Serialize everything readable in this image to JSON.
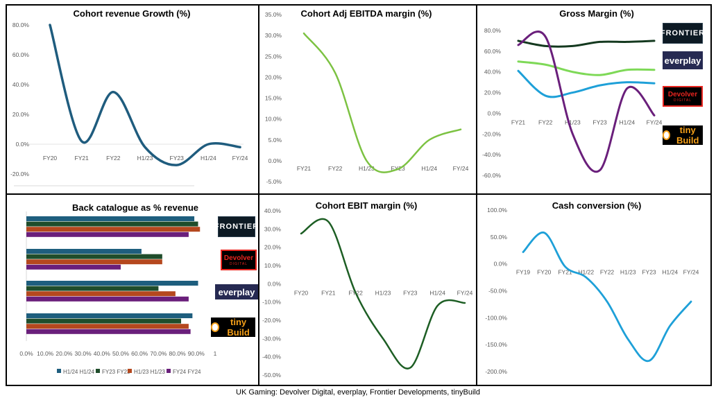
{
  "caption": "UK Gaming: Devolver Digital, everplay, Frontier Developments, tinyBuild",
  "logos": {
    "frontier": "FRONTIER",
    "everplay": "everplay",
    "devolver": "Devolver",
    "devolver_sub": "DIGITAL",
    "tinybuild": "tiny Build"
  },
  "chart_data": [
    {
      "id": "revenue",
      "type": "line",
      "title": "Cohort revenue Growth (%)",
      "categories": [
        "FY20",
        "FY21",
        "FY22",
        "H1/23",
        "FY23",
        "H1/24",
        "FY/24"
      ],
      "yticks": [
        "80.0%",
        "60.0%",
        "40.0%",
        "20.0%",
        "0.0%",
        "-20.0%"
      ],
      "ylim": [
        -20,
        80
      ],
      "series": [
        {
          "values": [
            80,
            2,
            35,
            -2,
            -14,
            0,
            -2
          ],
          "color": "#1f5c7e"
        }
      ]
    },
    {
      "id": "ebitda",
      "type": "line",
      "title": "Cohort Adj EBITDA margin (%)",
      "categories": [
        "FY21",
        "FY22",
        "H1/23",
        "FY23",
        "H1/24",
        "FY/24"
      ],
      "yticks": [
        "35.0%",
        "30.0%",
        "25.0%",
        "20.0%",
        "15.0%",
        "10.0%",
        "5.0%",
        "0.0%",
        "-5.0%"
      ],
      "ylim": [
        -5,
        35
      ],
      "series": [
        {
          "values": [
            30.5,
            21,
            0,
            -2,
            5,
            7.5
          ],
          "color": "#7cc242"
        }
      ]
    },
    {
      "id": "gross",
      "type": "line",
      "title": "Gross Margin (%)",
      "categories": [
        "FY21",
        "FY22",
        "H1/23",
        "FY23",
        "H1/24",
        "FY/24"
      ],
      "yticks": [
        "80.0%",
        "60.0%",
        "40.0%",
        "20.0%",
        "0.0%",
        "-20.0%",
        "-40.0%",
        "-60.0%"
      ],
      "ylim": [
        -60,
        80
      ],
      "series": [
        {
          "values": [
            70,
            65,
            65,
            69,
            69,
            70
          ],
          "color": "#14391f"
        },
        {
          "values": [
            50,
            47,
            40,
            37,
            42,
            42
          ],
          "color": "#7ed957"
        },
        {
          "values": [
            41,
            17,
            20,
            27,
            30,
            29
          ],
          "color": "#1ea0d8"
        },
        {
          "values": [
            66,
            74,
            -20,
            -55,
            24,
            -2
          ],
          "color": "#6a1f7b"
        }
      ]
    },
    {
      "id": "backcat",
      "type": "bar",
      "orientation": "horizontal",
      "title": "Back catalogue as % revenue",
      "xticks": [
        "0.0%",
        "10.0%",
        "20.0%",
        "30.0%",
        "40.0%",
        "50.0%",
        "60.0%",
        "70.0%",
        "80.0%",
        "90.0%",
        "1"
      ],
      "xlim": [
        0,
        100
      ],
      "categories": [
        "Frontier",
        "Devolver",
        "everplay",
        "tinyBuild"
      ],
      "series": [
        {
          "name": "H1/24 H1/24",
          "color": "#1e5e7e",
          "values": [
            89,
            61,
            91,
            88
          ]
        },
        {
          "name": "FY23 FY23",
          "color": "#1f4d2b",
          "values": [
            91,
            72,
            70,
            82
          ]
        },
        {
          "name": "H1/23 H1/23",
          "color": "#b5481e",
          "values": [
            92,
            72,
            79,
            86
          ]
        },
        {
          "name": "FY24 FY24",
          "color": "#6a1f7b",
          "values": [
            86,
            50,
            86,
            87
          ]
        }
      ]
    },
    {
      "id": "ebit",
      "type": "line",
      "title": "Cohort EBIT margin (%)",
      "categories": [
        "FY20",
        "FY21",
        "FY22",
        "H1/23",
        "FY23",
        "H1/24",
        "FY/24"
      ],
      "yticks": [
        "40.0%",
        "30.0%",
        "20.0%",
        "10.0%",
        "0.0%",
        "-10.0%",
        "-20.0%",
        "-30.0%",
        "-40.0%",
        "-50.0%"
      ],
      "ylim": [
        -50,
        40
      ],
      "series": [
        {
          "values": [
            27.5,
            34,
            -5,
            -30,
            -46,
            -12,
            -10.5
          ],
          "color": "#1d5e24"
        }
      ]
    },
    {
      "id": "cash",
      "type": "line",
      "title": "Cash conversion (%)",
      "categories": [
        "FY19",
        "FY20",
        "FY21",
        "H1/22",
        "FY22",
        "H1/23",
        "FY23",
        "H1/24",
        "FY/24"
      ],
      "yticks": [
        "100.0%",
        "50.0%",
        "0.0%",
        "-50.0%",
        "-100.0%",
        "-150.0%",
        "-200.0%"
      ],
      "ylim": [
        -200,
        100
      ],
      "series": [
        {
          "values": [
            22,
            58,
            -5,
            -25,
            -70,
            -140,
            -180,
            -115,
            -70
          ],
          "color": "#1ea0d8"
        }
      ]
    }
  ]
}
